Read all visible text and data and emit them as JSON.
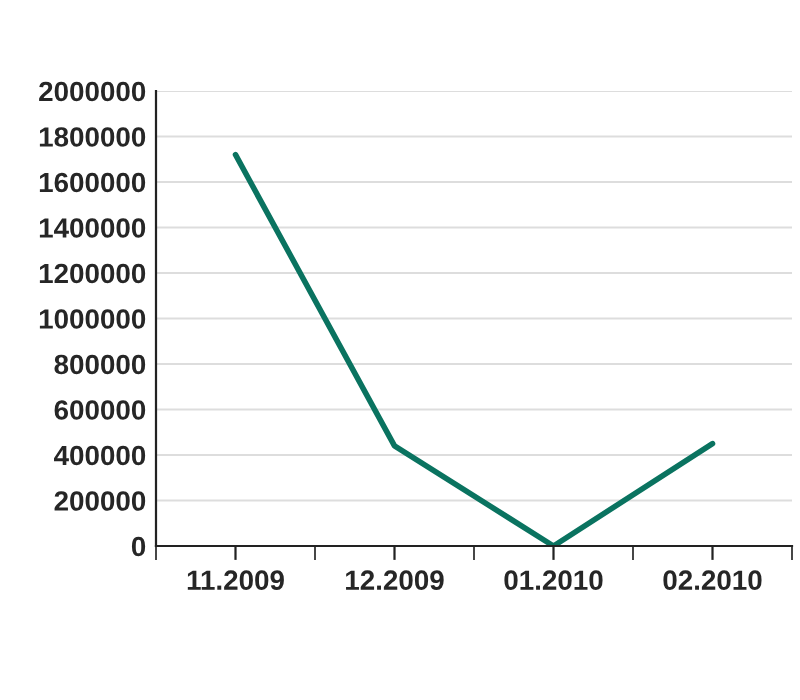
{
  "chart_data": {
    "type": "line",
    "categories": [
      "11.2009",
      "12.2009",
      "01.2010",
      "02.2010"
    ],
    "series": [
      {
        "color": "#0a7360",
        "values": [
          1720000,
          440000,
          0,
          450000
        ]
      }
    ],
    "ylim": [
      0,
      2000000
    ],
    "yticks": [
      0,
      200000,
      400000,
      600000,
      800000,
      1000000,
      1200000,
      1400000,
      1600000,
      1800000,
      2000000
    ],
    "grid": "y",
    "marker": "none",
    "line_style": "solid",
    "legend": false
  }
}
